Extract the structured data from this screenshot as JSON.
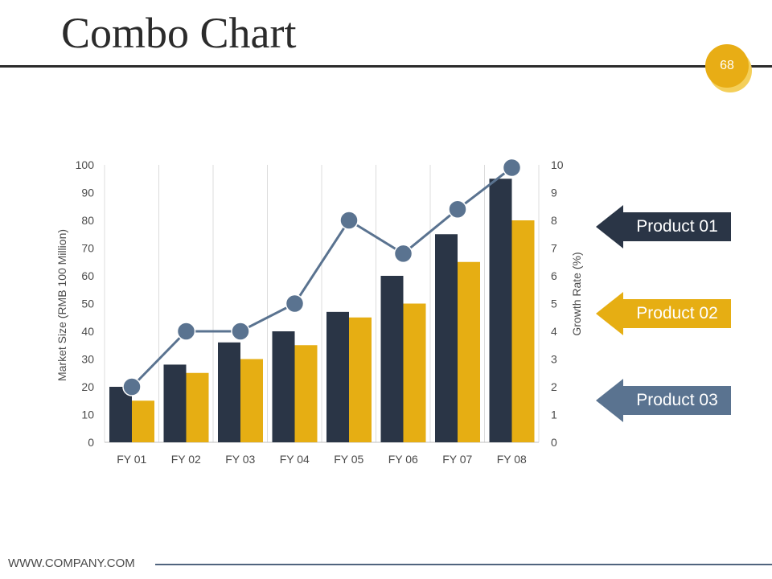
{
  "page": {
    "title": "Combo Chart",
    "page_number": "68",
    "footer": "WWW.COMPANY.COM"
  },
  "colors": {
    "product01": "#2a3546",
    "product02": "#e6ae13",
    "product03": "#5a7390",
    "text": "#2b2b2b"
  },
  "legend": [
    {
      "label": "Product 01",
      "color": "#2a3546"
    },
    {
      "label": "Product 02",
      "color": "#e6ae13"
    },
    {
      "label": "Product 03",
      "color": "#5a7390"
    }
  ],
  "chart_data": {
    "type": "bar",
    "title": "",
    "categories": [
      "FY 01",
      "FY 02",
      "FY 03",
      "FY 04",
      "FY 05",
      "FY 06",
      "FY 07",
      "FY 08"
    ],
    "series": [
      {
        "name": "Product 01",
        "kind": "bar",
        "axis": "left",
        "values": [
          20,
          28,
          36,
          40,
          47,
          60,
          75,
          95
        ]
      },
      {
        "name": "Product 02",
        "kind": "bar",
        "axis": "left",
        "values": [
          15,
          25,
          30,
          35,
          45,
          50,
          65,
          80
        ]
      },
      {
        "name": "Product 03",
        "kind": "line",
        "axis": "right",
        "values": [
          2,
          4,
          4,
          5,
          8,
          6.8,
          8.4,
          9.9
        ]
      }
    ],
    "ylabel": "Market Size (RMB 100 Million)",
    "y2label": "Growth Rate (%)",
    "ylim": [
      0,
      100
    ],
    "y2lim": [
      0,
      10
    ],
    "yticks": [
      "0",
      "10",
      "20",
      "30",
      "40",
      "50",
      "60",
      "70",
      "80",
      "90",
      "100"
    ],
    "y2ticks": [
      "0",
      "1",
      "2",
      "3",
      "4",
      "5",
      "6",
      "7",
      "8",
      "9",
      "10"
    ],
    "grid": "vertical"
  }
}
